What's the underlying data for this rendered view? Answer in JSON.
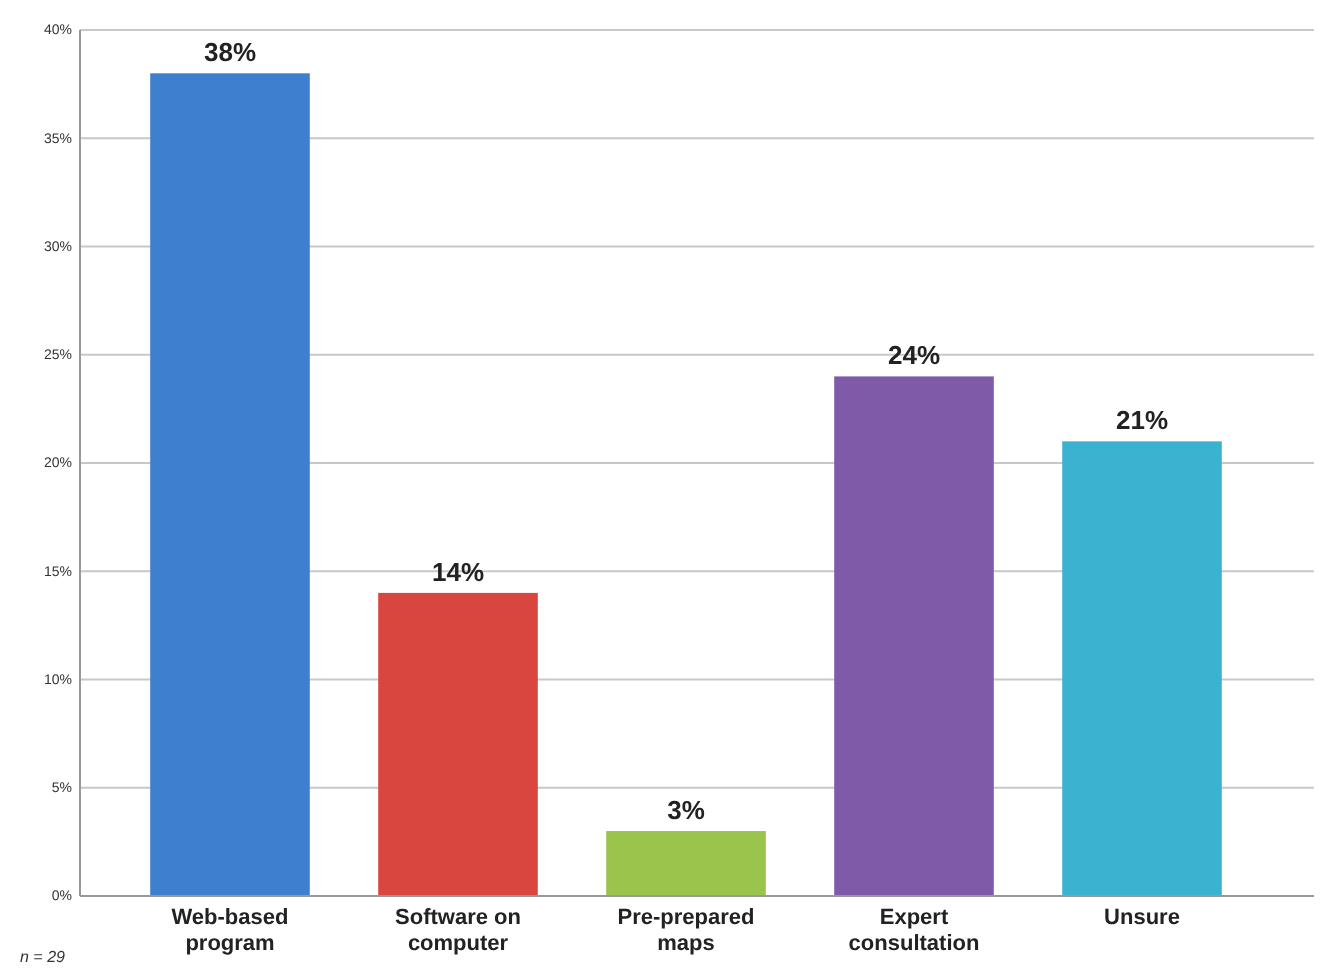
{
  "chart_data": {
    "type": "bar",
    "categories": [
      "Web-based program",
      "Software on computer",
      "Pre-prepared maps",
      "Expert consultation",
      "Unsure"
    ],
    "values": [
      38,
      14,
      3,
      24,
      21
    ],
    "colors": [
      "#3f7fcf",
      "#d9453f",
      "#9bc44c",
      "#7e5aa8",
      "#3bb3d0"
    ],
    "value_labels": [
      "38%",
      "14%",
      "3%",
      "24%",
      "21%"
    ],
    "ylim": [
      0,
      40
    ],
    "yticks": [
      {
        "value": 0,
        "label": "0%"
      },
      {
        "value": 5,
        "label": "5%"
      },
      {
        "value": 10,
        "label": "10%"
      },
      {
        "value": 15,
        "label": "15%"
      },
      {
        "value": 20,
        "label": "20%"
      },
      {
        "value": 25,
        "label": "25%"
      },
      {
        "value": 30,
        "label": "30%"
      },
      {
        "value": 35,
        "label": "35%"
      },
      {
        "value": 40,
        "label": "40%"
      }
    ],
    "grid": "y",
    "annotations": [
      "n = 29"
    ]
  }
}
